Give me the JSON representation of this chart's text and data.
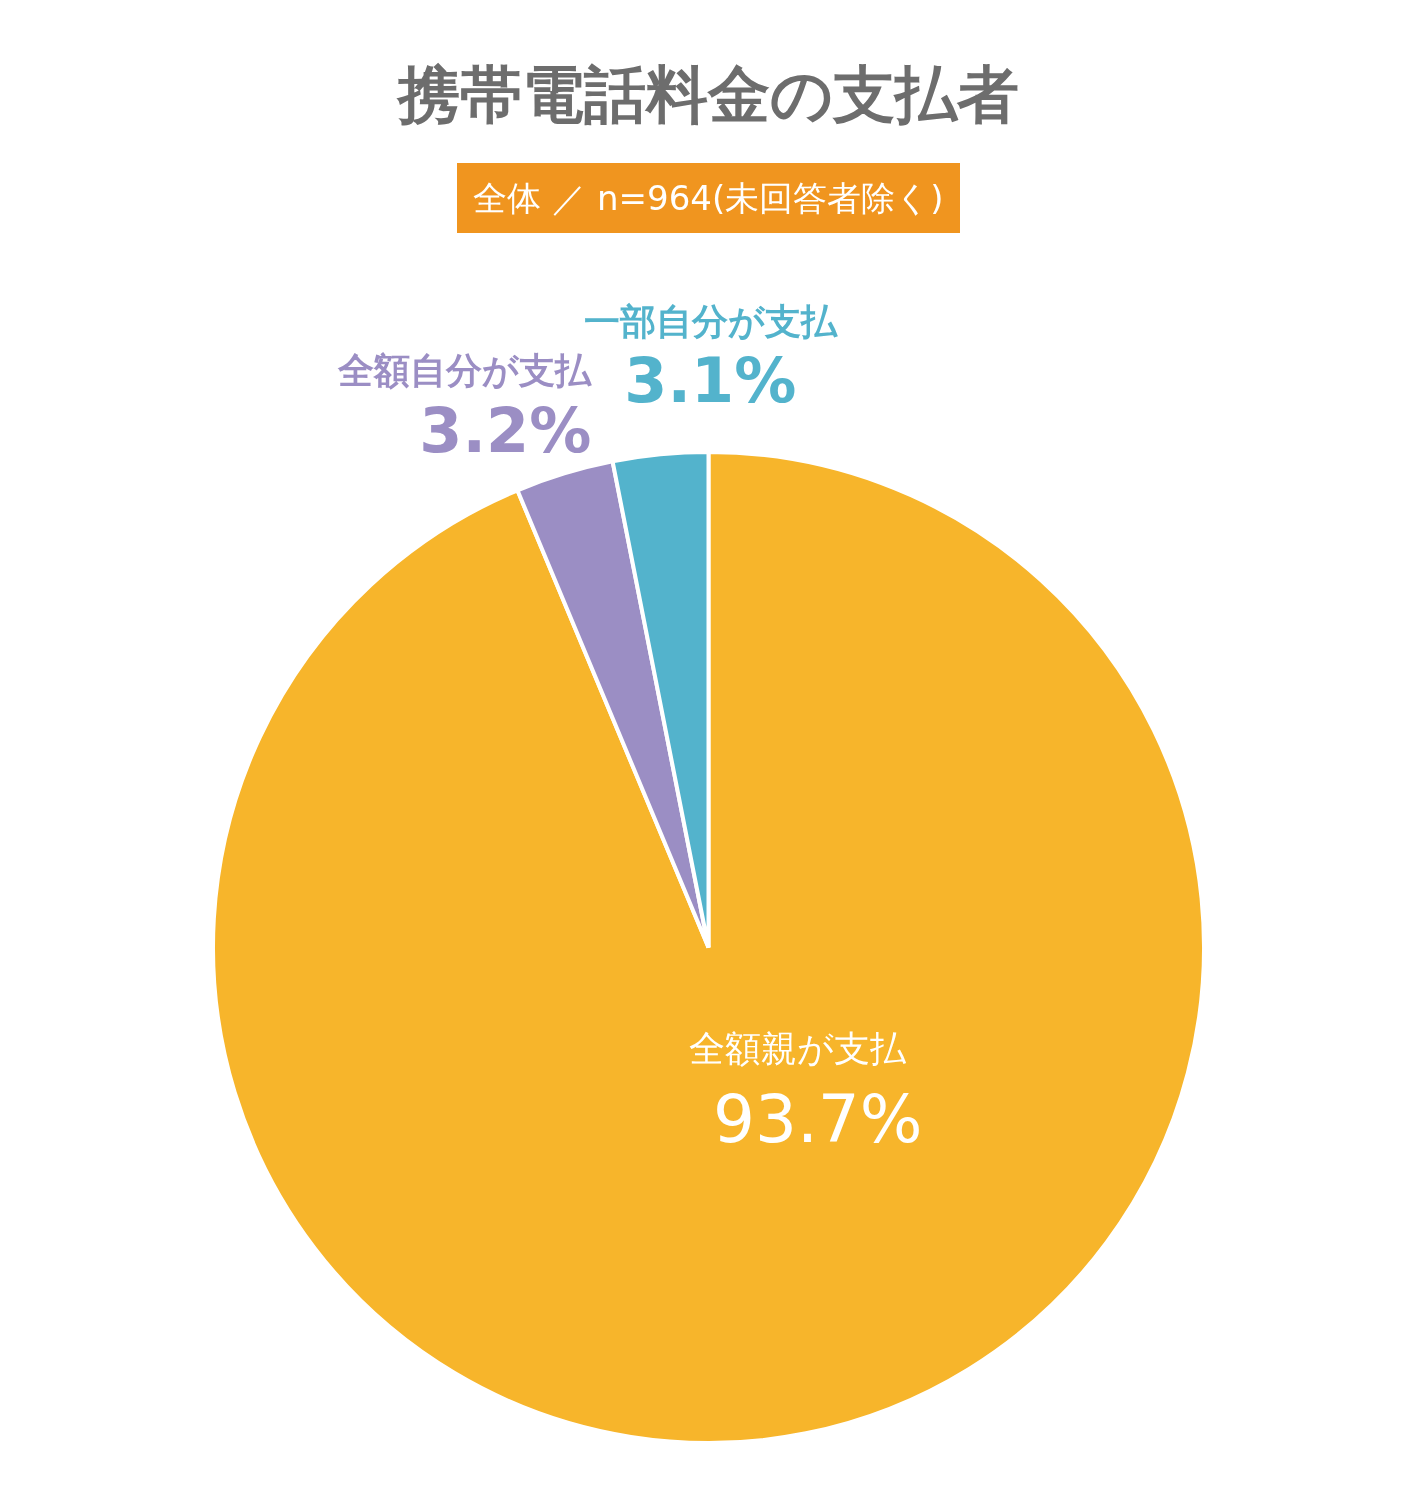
{
  "chart_data": {
    "type": "pie",
    "title": "携帯電話料金の支払者",
    "subtitle": "全体 ／ n=964(未回答者除く)",
    "categories": [
      "全額親が支払",
      "全額自分が支払",
      "一部自分が支払"
    ],
    "values": [
      93.7,
      3.2,
      3.1
    ],
    "colors": [
      "#f7b52b",
      "#9b8ec4",
      "#53b3cc"
    ],
    "value_labels": [
      "93.7%",
      "3.2%",
      "3.1%"
    ]
  }
}
